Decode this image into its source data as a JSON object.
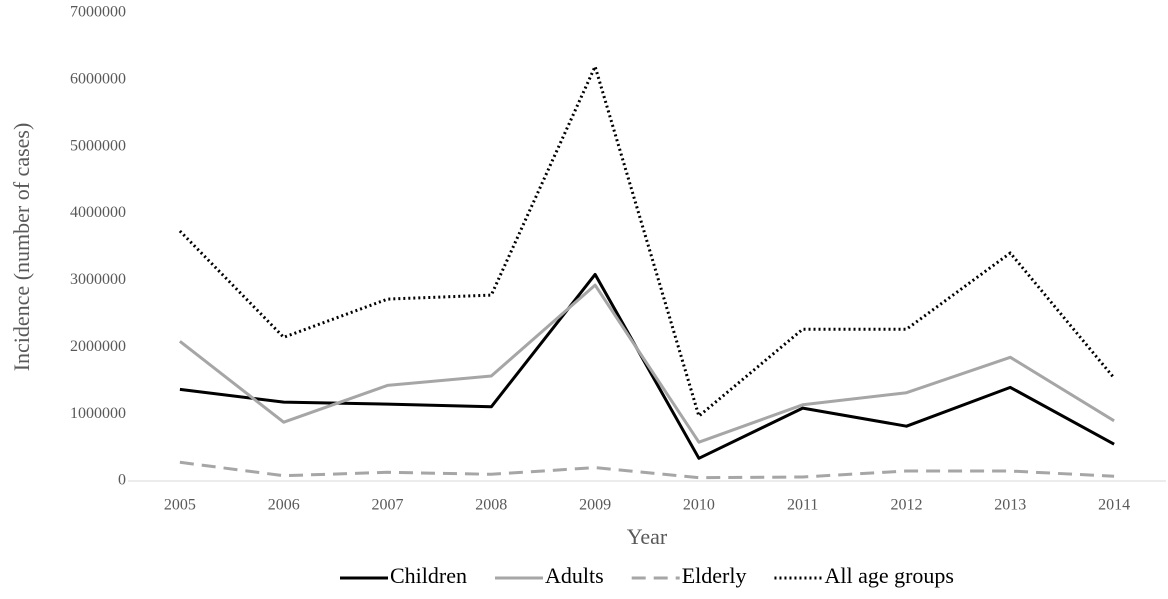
{
  "chart_data": {
    "type": "line",
    "x_label": "Year",
    "y_label": "Incidence (number of cases)",
    "categories": [
      "2005",
      "2006",
      "2007",
      "2008",
      "2009",
      "2010",
      "2011",
      "2012",
      "2013",
      "2014"
    ],
    "series": [
      {
        "name": "Children",
        "color": "#000000",
        "dash": "solid",
        "values": [
          1370000,
          1180000,
          1150000,
          1110000,
          3090000,
          340000,
          1090000,
          820000,
          1400000,
          550000
        ]
      },
      {
        "name": "Adults",
        "color": "#a6a6a6",
        "dash": "solid",
        "values": [
          2090000,
          880000,
          1430000,
          1570000,
          2930000,
          580000,
          1140000,
          1320000,
          1850000,
          900000
        ]
      },
      {
        "name": "Elderly",
        "color": "#a6a6a6",
        "dash": "dashed",
        "values": [
          280000,
          80000,
          130000,
          100000,
          200000,
          50000,
          60000,
          150000,
          150000,
          70000
        ]
      },
      {
        "name": "All age groups",
        "color": "#000000",
        "dash": "dotted",
        "values": [
          3740000,
          2150000,
          2720000,
          2780000,
          6200000,
          970000,
          2270000,
          2270000,
          3410000,
          1540000
        ]
      }
    ],
    "ylim": [
      0,
      7000000
    ],
    "yticks": [
      0,
      1000000,
      2000000,
      3000000,
      4000000,
      5000000,
      6000000,
      7000000
    ],
    "grid": false,
    "legend": "bottom"
  }
}
